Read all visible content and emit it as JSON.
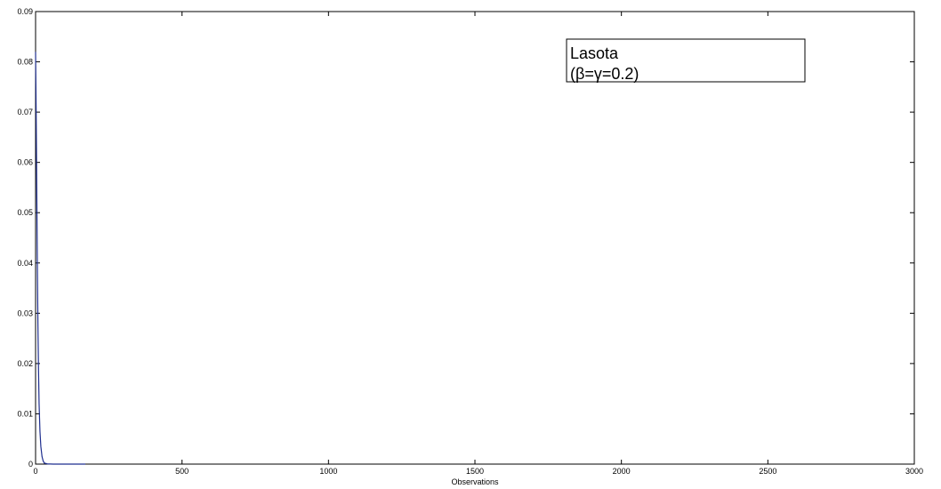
{
  "chart_data": {
    "type": "line",
    "title": "",
    "xlabel": "Observations",
    "ylabel": "",
    "xlim": [
      0,
      3000
    ],
    "ylim": [
      0,
      0.09
    ],
    "xticks": [
      0,
      500,
      1000,
      1500,
      2000,
      2500,
      3000
    ],
    "yticks": [
      0,
      0.01,
      0.02,
      0.03,
      0.04,
      0.05,
      0.06,
      0.07,
      0.08,
      0.09
    ],
    "xtick_labels": [
      "0",
      "500",
      "1000",
      "1500",
      "2000",
      "2500",
      "3000"
    ],
    "ytick_labels": [
      "0",
      "0.01",
      "0.02",
      "0.03",
      "0.04",
      "0.05",
      "0.06",
      "0.07",
      "0.08",
      "0.09"
    ],
    "grid": false,
    "legend": {
      "placement": "top-right",
      "lines": [
        "Lasota",
        "(β=γ=0.2)"
      ]
    },
    "series": [
      {
        "color": "#1f2f8f",
        "x": [
          0,
          2,
          4,
          6,
          8,
          10,
          12,
          15,
          18,
          22,
          26,
          30,
          40,
          60,
          100,
          170
        ],
        "y": [
          0.082,
          0.07,
          0.055,
          0.04,
          0.028,
          0.019,
          0.012,
          0.0065,
          0.0035,
          0.0015,
          0.0006,
          0.0002,
          5e-05,
          0,
          0,
          0
        ]
      }
    ]
  }
}
